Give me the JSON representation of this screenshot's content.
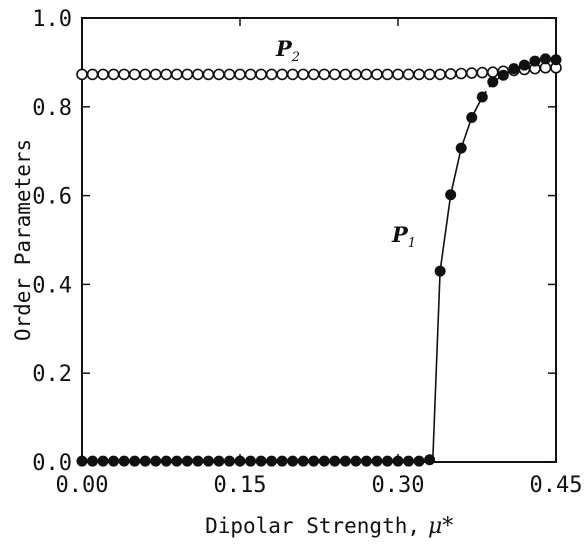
{
  "chart_data": {
    "type": "scatter",
    "title": "",
    "xlabel": "Dipolar Strength,",
    "xlabel_symbol": "μ*",
    "ylabel": "Order Parameters",
    "xlim": [
      0.0,
      0.45
    ],
    "ylim": [
      0.0,
      1.0
    ],
    "xticks": [
      "0.00",
      "0.15",
      "0.30",
      "0.45"
    ],
    "yticks": [
      "0.0",
      "0.2",
      "0.4",
      "0.6",
      "0.8",
      "1.0"
    ],
    "grid": false,
    "legend": "none",
    "annotations": [
      {
        "main": "P",
        "sub": "2"
      },
      {
        "main": "P",
        "sub": "1"
      }
    ],
    "series": [
      {
        "marker": "open-circle",
        "x": [
          0.0,
          0.01,
          0.02,
          0.03,
          0.04,
          0.05,
          0.06,
          0.07,
          0.08,
          0.09,
          0.1,
          0.11,
          0.12,
          0.13,
          0.14,
          0.15,
          0.16,
          0.17,
          0.18,
          0.19,
          0.2,
          0.21,
          0.22,
          0.23,
          0.24,
          0.25,
          0.26,
          0.27,
          0.28,
          0.29,
          0.3,
          0.31,
          0.32,
          0.33,
          0.34,
          0.35,
          0.36,
          0.37,
          0.38,
          0.39,
          0.4,
          0.41,
          0.42,
          0.43,
          0.44,
          0.45
        ],
        "y": [
          0.873,
          0.873,
          0.873,
          0.873,
          0.873,
          0.873,
          0.873,
          0.873,
          0.873,
          0.873,
          0.873,
          0.873,
          0.873,
          0.873,
          0.873,
          0.873,
          0.873,
          0.873,
          0.873,
          0.873,
          0.873,
          0.873,
          0.873,
          0.873,
          0.873,
          0.873,
          0.873,
          0.873,
          0.873,
          0.873,
          0.873,
          0.873,
          0.873,
          0.873,
          0.873,
          0.874,
          0.875,
          0.876,
          0.877,
          0.878,
          0.88,
          0.882,
          0.884,
          0.886,
          0.888,
          0.888
        ]
      },
      {
        "marker": "filled-circle",
        "x": [
          0.0,
          0.01,
          0.02,
          0.03,
          0.04,
          0.05,
          0.06,
          0.07,
          0.08,
          0.09,
          0.1,
          0.11,
          0.12,
          0.13,
          0.14,
          0.15,
          0.16,
          0.17,
          0.18,
          0.19,
          0.2,
          0.21,
          0.22,
          0.23,
          0.24,
          0.25,
          0.26,
          0.27,
          0.28,
          0.29,
          0.3,
          0.31,
          0.32,
          0.33,
          0.34,
          0.35,
          0.36,
          0.37,
          0.38,
          0.39,
          0.4,
          0.41,
          0.42,
          0.43,
          0.44,
          0.45
        ],
        "y": [
          0.002,
          0.002,
          0.002,
          0.002,
          0.002,
          0.002,
          0.002,
          0.002,
          0.002,
          0.002,
          0.002,
          0.002,
          0.002,
          0.002,
          0.002,
          0.002,
          0.002,
          0.002,
          0.002,
          0.002,
          0.002,
          0.002,
          0.002,
          0.002,
          0.002,
          0.002,
          0.002,
          0.002,
          0.002,
          0.002,
          0.002,
          0.002,
          0.002,
          0.005,
          0.43,
          0.602,
          0.707,
          0.776,
          0.822,
          0.856,
          0.871,
          0.886,
          0.894,
          0.903,
          0.908,
          0.906
        ]
      }
    ],
    "fit_line": {
      "style": "solid-then-dashed",
      "x": [
        0.333,
        0.34,
        0.35,
        0.36,
        0.37,
        0.38,
        0.39,
        0.4,
        0.41,
        0.42,
        0.43,
        0.44,
        0.45
      ],
      "y": [
        0.005,
        0.43,
        0.602,
        0.707,
        0.776,
        0.822,
        0.856,
        0.871,
        0.886,
        0.894,
        0.903,
        0.908,
        0.906
      ],
      "dashed_from_x": 0.385
    }
  }
}
